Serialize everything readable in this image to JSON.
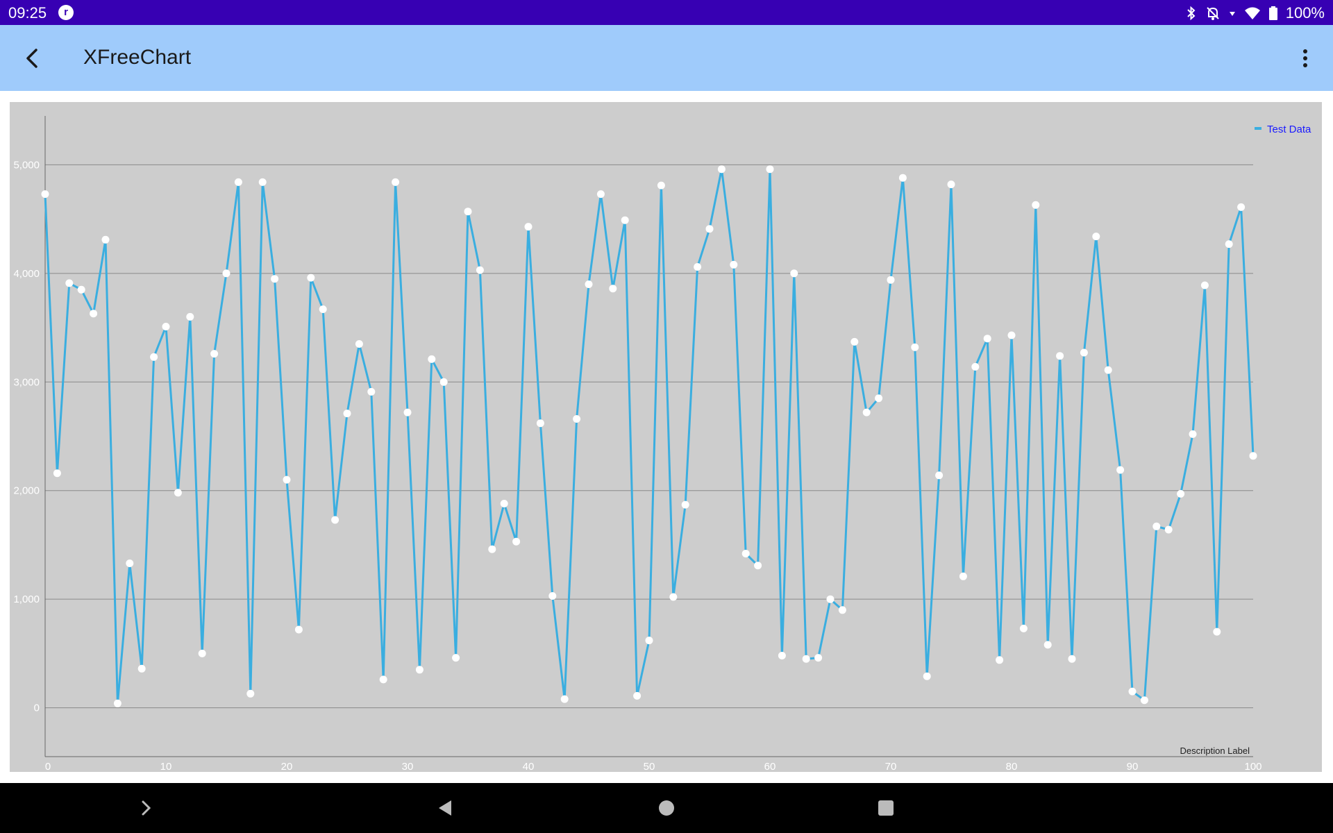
{
  "status_bar": {
    "time": "09:25",
    "app_icon_letter": "r",
    "battery": "100%",
    "icons": [
      "bluetooth-icon",
      "bell-off-icon",
      "wifi-icon",
      "battery-icon"
    ]
  },
  "app_bar": {
    "title": "XFreeChart",
    "back_icon": "back-arrow-icon",
    "menu_icon": "overflow-menu-icon"
  },
  "nav_bar": {
    "icons": [
      "keyboard-chevron-icon",
      "back-triangle-icon",
      "home-circle-icon",
      "recents-square-icon"
    ]
  },
  "colors": {
    "status_bar": "#3700b3",
    "app_bar": "#9fcbfb",
    "chart_bg": "#cdcdcd",
    "series_line": "#3aaee0",
    "legend_text": "#1a1aff"
  },
  "chart_data": {
    "type": "line",
    "title": "",
    "xlabel": "",
    "ylabel": "",
    "description_label": "Description Label",
    "xlim": [
      0,
      100
    ],
    "ylim": [
      -450,
      5450
    ],
    "x_ticks": [
      0,
      10,
      20,
      30,
      40,
      50,
      60,
      70,
      80,
      90,
      100
    ],
    "y_ticks": [
      0,
      1000,
      2000,
      3000,
      4000,
      5000
    ],
    "y_tick_labels": [
      "0",
      "1,000",
      "2,000",
      "3,000",
      "4,000",
      "5,000"
    ],
    "grid": "horizontal",
    "legend_position": "top-right",
    "series": [
      {
        "name": "Test Data",
        "x": [
          0,
          1,
          2,
          3,
          4,
          5,
          6,
          7,
          8,
          9,
          10,
          11,
          12,
          13,
          14,
          15,
          16,
          17,
          18,
          19,
          20,
          21,
          22,
          23,
          24,
          25,
          26,
          27,
          28,
          29,
          30,
          31,
          32,
          33,
          34,
          35,
          36,
          37,
          38,
          39,
          40,
          41,
          42,
          43,
          44,
          45,
          46,
          47,
          48,
          49,
          50,
          51,
          52,
          53,
          54,
          55,
          56,
          57,
          58,
          59,
          60,
          61,
          62,
          63,
          64,
          65,
          66,
          67,
          68,
          69,
          70,
          71,
          72,
          73,
          74,
          75,
          76,
          77,
          78,
          79,
          80,
          81,
          82,
          83,
          84,
          85,
          86,
          87,
          88,
          89,
          90,
          91,
          92,
          93,
          94,
          95,
          96,
          97,
          98,
          99,
          100
        ],
        "values": [
          4730,
          2160,
          3910,
          3850,
          3630,
          4310,
          40,
          1330,
          360,
          3230,
          3510,
          1980,
          3600,
          500,
          3260,
          4000,
          4840,
          130,
          4840,
          3950,
          2100,
          720,
          3960,
          3670,
          1730,
          2710,
          3350,
          2910,
          260,
          4840,
          2720,
          350,
          3210,
          3000,
          460,
          4570,
          4030,
          1460,
          1880,
          1530,
          4430,
          2620,
          1030,
          80,
          2660,
          3900,
          4730,
          3860,
          4490,
          110,
          620,
          4810,
          1020,
          1870,
          4060,
          4410,
          4960,
          4080,
          1420,
          1310,
          4960,
          480,
          4000,
          450,
          460,
          1000,
          900,
          3370,
          2720,
          2850,
          3940,
          4880,
          3320,
          290,
          2140,
          4820,
          1210,
          3140,
          3400,
          440,
          3430,
          730,
          4630,
          580,
          3240,
          450,
          3270,
          4340,
          3110,
          2190,
          150,
          70,
          1670,
          1640,
          1970,
          2520,
          3890,
          700,
          4270,
          4610,
          2320
        ]
      }
    ]
  }
}
